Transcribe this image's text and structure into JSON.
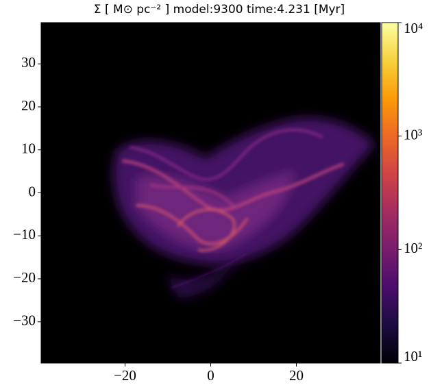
{
  "chart_data": {
    "type": "image",
    "title": "Σ [ M⊙ pc⁻² ] model:9300 time:4.231 [Myr]",
    "xlim": [
      -39.6,
      39.6
    ],
    "ylim": [
      -39.6,
      39.6
    ],
    "xticks": [
      {
        "value": -20,
        "label": "−20"
      },
      0,
      20
    ],
    "yticks": [
      {
        "value": -30,
        "label": "−30"
      },
      {
        "value": -20,
        "label": "−20"
      },
      {
        "value": -10,
        "label": "−10"
      },
      0,
      10,
      20,
      30
    ],
    "colorbar": {
      "log": true,
      "colormap": "inferno",
      "lim": [
        10,
        10000
      ],
      "ticks": [
        {
          "value": 10,
          "label": "10¹"
        },
        {
          "value": 100,
          "label": "10²"
        },
        {
          "value": 1000,
          "label": "10³"
        },
        {
          "value": 10000,
          "label": "10⁴"
        }
      ]
    }
  }
}
